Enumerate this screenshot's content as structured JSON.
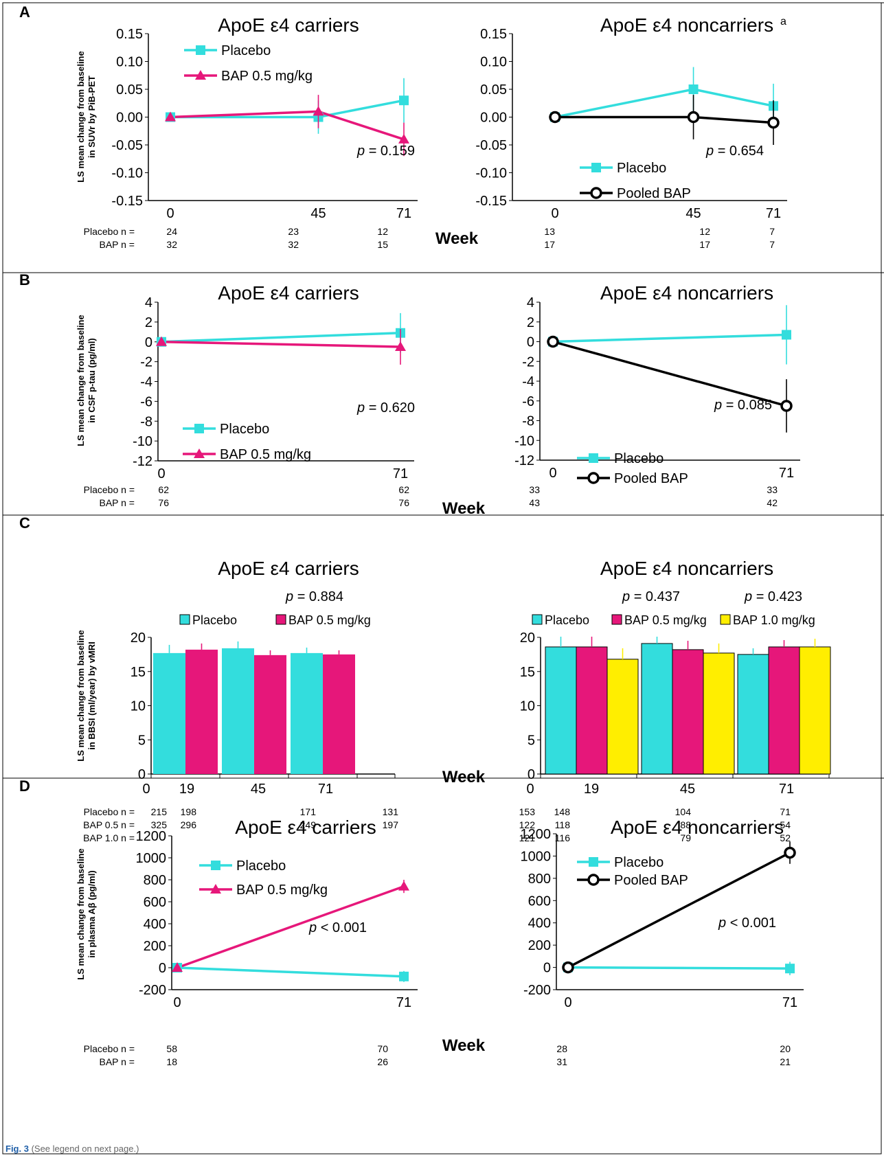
{
  "figure": {
    "caption_label": "Fig. 3",
    "caption_text": " (See legend on next page.)",
    "week_label": "Week"
  },
  "colors": {
    "placebo": "#33dddd",
    "bap05": "#e6177a",
    "bap10": "#ffee00",
    "pooled": "#000000",
    "frame": "#000000"
  },
  "panels": [
    {
      "id": "A",
      "ylabel": [
        "LS mean change from baseline",
        "in SUVr by PiB-PET"
      ],
      "n_labels": [
        "Placebo n =",
        "BAP n ="
      ],
      "charts": [
        {
          "title": "ApoE ε4 carriers",
          "pvalue": "= 0.159",
          "legend": [
            "Placebo",
            "BAP 0.5 mg/kg"
          ],
          "xticks": [
            "0",
            "45",
            "71"
          ],
          "yticks": [
            "0.15",
            "0.10",
            "0.05",
            "0.00",
            "-0.05",
            "-0.10",
            "-0.15"
          ],
          "n_rows": [
            [
              "24",
              "23",
              "12"
            ],
            [
              "32",
              "32",
              "15"
            ]
          ]
        },
        {
          "title": "ApoE ε4 noncarriers",
          "title_sup": "a",
          "pvalue": "= 0.654",
          "legend": [
            "Placebo",
            "Pooled BAP"
          ],
          "xticks": [
            "0",
            "45",
            "71"
          ],
          "yticks": [
            "0.15",
            "0.10",
            "0.05",
            "0.00",
            "-0.05",
            "-0.10",
            "-0.15"
          ],
          "n_rows": [
            [
              "13",
              "12",
              "7"
            ],
            [
              "17",
              "17",
              "7"
            ]
          ]
        }
      ]
    },
    {
      "id": "B",
      "ylabel": [
        "LS mean change from baseline",
        "in CSF p-tau (pg/ml)"
      ],
      "n_labels": [
        "Placebo n =",
        "BAP n ="
      ],
      "charts": [
        {
          "title": "ApoE ε4 carriers",
          "pvalue": "= 0.620",
          "legend": [
            "Placebo",
            "BAP 0.5 mg/kg"
          ],
          "xticks": [
            "0",
            "71"
          ],
          "yticks": [
            "4",
            "2",
            "0",
            "-2",
            "-4",
            "-6",
            "-8",
            "-10",
            "-12"
          ],
          "n_rows": [
            [
              "62",
              "62"
            ],
            [
              "76",
              "76"
            ]
          ]
        },
        {
          "title": "ApoE ε4 noncarriers",
          "pvalue": "= 0.085",
          "legend": [
            "Placebo",
            "Pooled BAP"
          ],
          "xticks": [
            "0",
            "71"
          ],
          "yticks": [
            "4",
            "2",
            "0",
            "-2",
            "-4",
            "-6",
            "-8",
            "-10",
            "-12"
          ],
          "n_rows": [
            [
              "33",
              "33"
            ],
            [
              "43",
              "42"
            ]
          ]
        }
      ]
    },
    {
      "id": "C",
      "ylabel": [
        "LS mean change from baseline",
        "in BBSI (ml/year) by vMRI"
      ],
      "n_labels": [
        "Placebo n =",
        "BAP 0.5 n =",
        "BAP 1.0 n ="
      ],
      "charts": [
        {
          "title": "ApoE ε4 carriers",
          "pvalues": [
            "= 0.884"
          ],
          "legend": [
            "Placebo",
            "BAP 0.5 mg/kg"
          ],
          "xticks": [
            "0",
            "19",
            "45",
            "71"
          ],
          "yticks": [
            "20",
            "15",
            "10",
            "5",
            "0"
          ],
          "n_rows": [
            [
              "215",
              "198",
              "171",
              "131"
            ],
            [
              "325",
              "296",
              "249",
              "197"
            ],
            []
          ]
        },
        {
          "title": "ApoE ε4 noncarriers",
          "pvalues": [
            "= 0.437",
            "= 0.423"
          ],
          "legend": [
            "Placebo",
            "BAP 0.5 mg/kg",
            "BAP 1.0 mg/kg"
          ],
          "xticks": [
            "0",
            "19",
            "45",
            "71"
          ],
          "yticks": [
            "20",
            "15",
            "10",
            "5",
            "0"
          ],
          "n_rows": [
            [
              "153",
              "148",
              "104",
              "71"
            ],
            [
              "122",
              "118",
              "88",
              "54"
            ],
            [
              "121",
              "116",
              "79",
              "52"
            ]
          ]
        }
      ]
    },
    {
      "id": "D",
      "ylabel": [
        "LS mean change from baseline",
        "in plasma Aβ (pg/ml)"
      ],
      "n_labels": [
        "Placebo n =",
        "BAP n ="
      ],
      "charts": [
        {
          "title": "ApoE ε4 carriers",
          "pvalue": "< 0.001",
          "legend": [
            "Placebo",
            "BAP 0.5 mg/kg"
          ],
          "xticks": [
            "0",
            "71"
          ],
          "yticks": [
            "1200",
            "1000",
            "800",
            "600",
            "400",
            "200",
            "0",
            "-200"
          ],
          "n_rows": [
            [
              "58",
              "70"
            ],
            [
              "18",
              "26"
            ]
          ]
        },
        {
          "title": "ApoE ε4 noncarriers",
          "pvalue": "< 0.001",
          "legend": [
            "Placebo",
            "Pooled BAP"
          ],
          "xticks": [
            "0",
            "71"
          ],
          "yticks": [
            "1200",
            "1000",
            "800",
            "600",
            "400",
            "200",
            "0",
            "-200"
          ],
          "n_rows": [
            [
              "28",
              "20"
            ],
            [
              "31",
              "21"
            ]
          ]
        }
      ]
    }
  ],
  "chart_data": [
    {
      "panel": "A",
      "type": "line",
      "title": "ApoE ε4 carriers",
      "x": [
        0,
        45,
        71
      ],
      "ylim": [
        -0.15,
        0.15
      ],
      "series": [
        {
          "name": "Placebo",
          "x": [
            0,
            45,
            71
          ],
          "y": [
            0.0,
            0.0,
            0.03
          ],
          "err": [
            0,
            0.03,
            0.04
          ]
        },
        {
          "name": "BAP 0.5 mg/kg",
          "x": [
            0,
            45,
            71
          ],
          "y": [
            0.0,
            0.01,
            -0.04
          ],
          "err": [
            0,
            0.03,
            0.03
          ]
        }
      ]
    },
    {
      "panel": "A",
      "type": "line",
      "title": "ApoE ε4 noncarriers",
      "x": [
        0,
        45,
        71
      ],
      "ylim": [
        -0.15,
        0.15
      ],
      "series": [
        {
          "name": "Placebo",
          "x": [
            0,
            45,
            71
          ],
          "y": [
            0.0,
            0.05,
            0.02
          ],
          "err": [
            0,
            0.04,
            0.04
          ]
        },
        {
          "name": "Pooled BAP",
          "x": [
            0,
            45,
            71
          ],
          "y": [
            0.0,
            0.0,
            -0.01
          ],
          "err": [
            0,
            0.04,
            0.04
          ]
        }
      ]
    },
    {
      "panel": "B",
      "type": "line",
      "title": "ApoE ε4 carriers",
      "x": [
        0,
        71
      ],
      "ylim": [
        -12,
        4
      ],
      "series": [
        {
          "name": "Placebo",
          "x": [
            0,
            71
          ],
          "y": [
            0.0,
            0.9
          ],
          "err": [
            0,
            2.0
          ]
        },
        {
          "name": "BAP 0.5 mg/kg",
          "x": [
            0,
            71
          ],
          "y": [
            0.0,
            -0.5
          ],
          "err": [
            0,
            1.8
          ]
        }
      ]
    },
    {
      "panel": "B",
      "type": "line",
      "title": "ApoE ε4 noncarriers",
      "x": [
        0,
        71
      ],
      "ylim": [
        -12,
        4
      ],
      "series": [
        {
          "name": "Placebo",
          "x": [
            0,
            71
          ],
          "y": [
            0.0,
            0.7
          ],
          "err": [
            0,
            3.0
          ]
        },
        {
          "name": "Pooled BAP",
          "x": [
            0,
            71
          ],
          "y": [
            0.0,
            -6.5
          ],
          "err": [
            0,
            2.7
          ]
        }
      ]
    },
    {
      "panel": "C",
      "type": "bar",
      "title": "ApoE ε4 carriers",
      "categories": [
        "19",
        "45",
        "71"
      ],
      "ylim": [
        0,
        20
      ],
      "series": [
        {
          "name": "Placebo",
          "values": [
            17.7,
            18.4,
            17.7
          ],
          "err": [
            1.2,
            1.0,
            0.8
          ]
        },
        {
          "name": "BAP 0.5 mg/kg",
          "values": [
            18.2,
            17.4,
            17.5
          ],
          "err": [
            0.9,
            0.7,
            0.6
          ]
        }
      ]
    },
    {
      "panel": "C",
      "type": "bar",
      "title": "ApoE ε4 noncarriers",
      "categories": [
        "19",
        "45",
        "71"
      ],
      "ylim": [
        0,
        20
      ],
      "series": [
        {
          "name": "Placebo",
          "values": [
            18.6,
            19.1,
            17.5
          ],
          "err": [
            1.5,
            1.0,
            0.9
          ]
        },
        {
          "name": "BAP 0.5 mg/kg",
          "values": [
            18.6,
            18.2,
            18.6
          ],
          "err": [
            1.5,
            1.3,
            1.0
          ]
        },
        {
          "name": "BAP 1.0 mg/kg",
          "values": [
            16.8,
            17.7,
            18.6
          ],
          "err": [
            1.6,
            1.4,
            1.2
          ]
        }
      ]
    },
    {
      "panel": "D",
      "type": "line",
      "title": "ApoE ε4 carriers",
      "x": [
        0,
        71
      ],
      "ylim": [
        -200,
        1200
      ],
      "series": [
        {
          "name": "Placebo",
          "x": [
            0,
            71
          ],
          "y": [
            0,
            -80
          ],
          "err": [
            0,
            50
          ]
        },
        {
          "name": "BAP 0.5 mg/kg",
          "x": [
            0,
            71
          ],
          "y": [
            0,
            740
          ],
          "err": [
            0,
            60
          ]
        }
      ]
    },
    {
      "panel": "D",
      "type": "line",
      "title": "ApoE ε4 noncarriers",
      "x": [
        0,
        71
      ],
      "ylim": [
        -200,
        1200
      ],
      "series": [
        {
          "name": "Placebo",
          "x": [
            0,
            71
          ],
          "y": [
            0,
            -10
          ],
          "err": [
            0,
            60
          ]
        },
        {
          "name": "Pooled BAP",
          "x": [
            0,
            71
          ],
          "y": [
            0,
            1030
          ],
          "err": [
            0,
            100
          ]
        }
      ]
    }
  ]
}
